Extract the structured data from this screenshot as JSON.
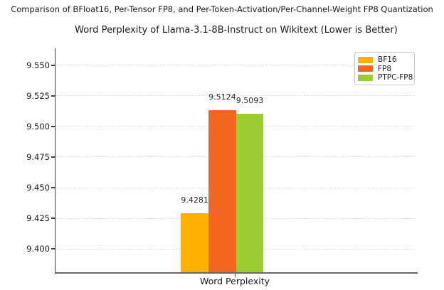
{
  "figure": {
    "suptitle": "Comparison of BFloat16, Per-Tensor FP8, and Per-Token-Activation/Per-Channel-Weight FP8 Quantization"
  },
  "chart_data": {
    "type": "bar",
    "title": "Word Perplexity of Llama-3.1-8B-Instruct on Wikitext (Lower is Better)",
    "categories": [
      "Word Perplexity"
    ],
    "series": [
      {
        "name": "BF16",
        "values": [
          9.4281
        ],
        "color": "#FFB000"
      },
      {
        "name": "FP8",
        "values": [
          9.5124
        ],
        "color": "#F2661F"
      },
      {
        "name": "PTPC-FP8",
        "values": [
          9.5093
        ],
        "color": "#9ACD32"
      }
    ],
    "value_labels": [
      "9.4281",
      "9.5124",
      "9.5093"
    ],
    "xlabel": "",
    "ylabel": "",
    "ylim": [
      9.3797,
      9.5639
    ],
    "yticks": [
      9.4,
      9.425,
      9.45,
      9.475,
      9.5,
      9.525,
      9.55
    ],
    "ytick_labels": [
      "9.400",
      "9.425",
      "9.450",
      "9.475",
      "9.500",
      "9.525",
      "9.550"
    ],
    "grid": true,
    "grid_style": "dotted",
    "legend_position": "upper right",
    "axis_colors": {
      "spine": "#3d3d3d",
      "grid": "#d2d2d2",
      "text": "#1a1a1a"
    }
  }
}
